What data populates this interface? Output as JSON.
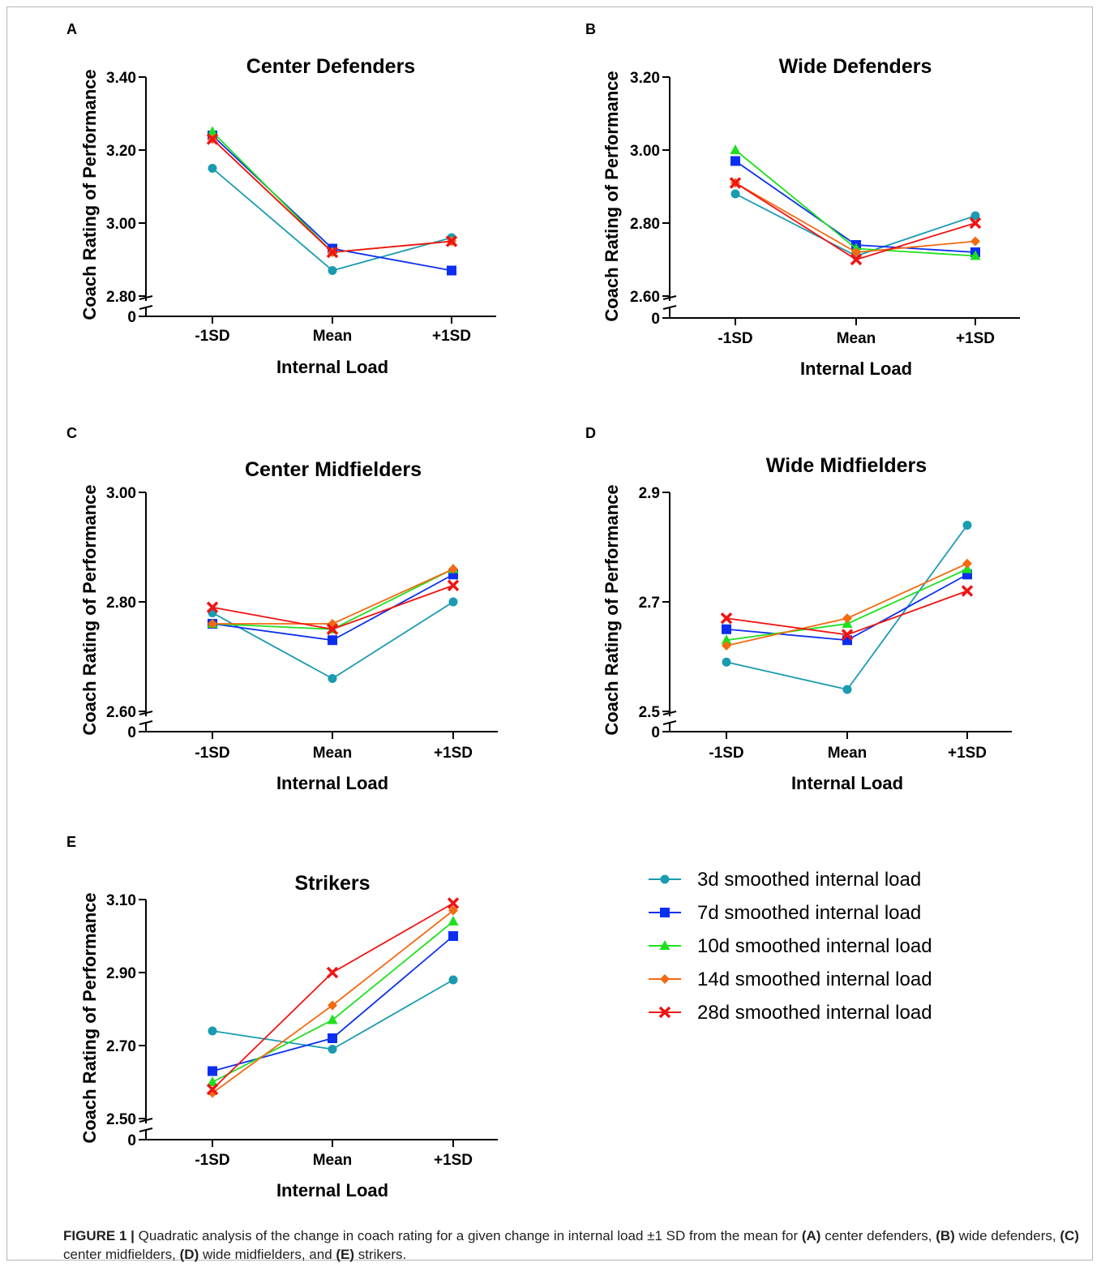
{
  "figure_caption": {
    "label": "FIGURE 1 |",
    "parts": [
      {
        "text": " Quadratic analysis of the change in coach rating for a given change in internal load ±1 SD from the mean for ",
        "bold": false
      },
      {
        "text": "(A)",
        "bold": true
      },
      {
        "text": " center defenders, ",
        "bold": false
      },
      {
        "text": "(B)",
        "bold": true
      },
      {
        "text": " wide defenders, ",
        "bold": false
      },
      {
        "text": "(C)",
        "bold": true
      },
      {
        "text": " center midfielders, ",
        "bold": false
      },
      {
        "text": "(D)",
        "bold": true
      },
      {
        "text": " wide midfielders, and ",
        "bold": false
      },
      {
        "text": "(E)",
        "bold": true
      },
      {
        "text": " strikers.",
        "bold": false
      }
    ]
  },
  "legend": {
    "entries": [
      {
        "label": "3d smoothed internal load",
        "color": "#1a9bb0",
        "marker": "circle"
      },
      {
        "label": "7d smoothed internal load",
        "color": "#0b2ff0",
        "marker": "square"
      },
      {
        "label": "10d smoothed internal load",
        "color": "#1ee01e",
        "marker": "triangle"
      },
      {
        "label": "14d smoothed internal load",
        "color": "#f26a12",
        "marker": "diamond"
      },
      {
        "label": "28d smoothed internal load",
        "color": "#f01414",
        "marker": "x"
      }
    ]
  },
  "chart_data": [
    {
      "type": "line",
      "panel_label": "A",
      "title": "Center Defenders",
      "xlabel": "Internal Load",
      "ylabel": "Coach Rating of Performance",
      "categories": [
        "-1SD",
        "Mean",
        "+1SD"
      ],
      "ylim": [
        2.8,
        3.4
      ],
      "yticks": [
        "3.40",
        "3.20",
        "3.00",
        "2.80"
      ],
      "y_break_zero": "0",
      "series": [
        {
          "name": "3d smoothed internal load",
          "values": [
            3.15,
            2.87,
            2.96
          ]
        },
        {
          "name": "7d smoothed internal load",
          "values": [
            3.24,
            2.93,
            2.87
          ]
        },
        {
          "name": "10d smoothed internal load",
          "values": [
            3.25,
            2.92,
            2.95
          ]
        },
        {
          "name": "14d smoothed internal load",
          "values": [
            3.23,
            2.92,
            2.95
          ]
        },
        {
          "name": "28d smoothed internal load",
          "values": [
            3.23,
            2.92,
            2.95
          ]
        }
      ]
    },
    {
      "type": "line",
      "panel_label": "B",
      "title": "Wide Defenders",
      "xlabel": "Internal Load",
      "ylabel": "Coach Rating of Performance",
      "categories": [
        "-1SD",
        "Mean",
        "+1SD"
      ],
      "ylim": [
        2.6,
        3.2
      ],
      "yticks": [
        "3.20",
        "3.00",
        "2.80",
        "2.60"
      ],
      "y_break_zero": "0",
      "series": [
        {
          "name": "3d smoothed internal load",
          "values": [
            2.88,
            2.71,
            2.82
          ]
        },
        {
          "name": "7d smoothed internal load",
          "values": [
            2.97,
            2.74,
            2.72
          ]
        },
        {
          "name": "10d smoothed internal load",
          "values": [
            3.0,
            2.73,
            2.71
          ]
        },
        {
          "name": "14d smoothed internal load",
          "values": [
            2.91,
            2.72,
            2.75
          ]
        },
        {
          "name": "28d smoothed internal load",
          "values": [
            2.91,
            2.7,
            2.8
          ]
        }
      ]
    },
    {
      "type": "line",
      "panel_label": "C",
      "title": "Center Midfielders",
      "xlabel": "Internal Load",
      "ylabel": "Coach Rating of Performance",
      "categories": [
        "-1SD",
        "Mean",
        "+1SD"
      ],
      "ylim": [
        2.6,
        3.0
      ],
      "yticks": [
        "3.00",
        "2.80",
        "2.60"
      ],
      "y_break_zero": "0",
      "series": [
        {
          "name": "3d smoothed internal load",
          "values": [
            2.78,
            2.66,
            2.8
          ]
        },
        {
          "name": "7d smoothed internal load",
          "values": [
            2.76,
            2.73,
            2.85
          ]
        },
        {
          "name": "10d smoothed internal load",
          "values": [
            2.76,
            2.75,
            2.86
          ]
        },
        {
          "name": "14d smoothed internal load",
          "values": [
            2.76,
            2.76,
            2.86
          ]
        },
        {
          "name": "28d smoothed internal load",
          "values": [
            2.79,
            2.75,
            2.83
          ]
        }
      ]
    },
    {
      "type": "line",
      "panel_label": "D",
      "title": "Wide Midfielders",
      "xlabel": "Internal Load",
      "ylabel": "Coach Rating of Performance",
      "categories": [
        "-1SD",
        "Mean",
        "+1SD"
      ],
      "ylim": [
        2.5,
        2.9
      ],
      "yticks": [
        "2.9",
        "2.7",
        "2.5"
      ],
      "y_break_zero": "0",
      "series": [
        {
          "name": "3d smoothed internal load",
          "values": [
            2.59,
            2.54,
            2.84
          ]
        },
        {
          "name": "7d smoothed internal load",
          "values": [
            2.65,
            2.63,
            2.75
          ]
        },
        {
          "name": "10d smoothed internal load",
          "values": [
            2.63,
            2.66,
            2.76
          ]
        },
        {
          "name": "14d smoothed internal load",
          "values": [
            2.62,
            2.67,
            2.77
          ]
        },
        {
          "name": "28d smoothed internal load",
          "values": [
            2.67,
            2.64,
            2.72
          ]
        }
      ]
    },
    {
      "type": "line",
      "panel_label": "E",
      "title": "Strikers",
      "xlabel": "Internal Load",
      "ylabel": "Coach Rating of Performance",
      "categories": [
        "-1SD",
        "Mean",
        "+1SD"
      ],
      "ylim": [
        2.5,
        3.1
      ],
      "yticks": [
        "3.10",
        "2.90",
        "2.70",
        "2.50"
      ],
      "y_break_zero": "0",
      "series": [
        {
          "name": "3d smoothed internal load",
          "values": [
            2.74,
            2.69,
            2.88
          ]
        },
        {
          "name": "7d smoothed internal load",
          "values": [
            2.63,
            2.72,
            3.0
          ]
        },
        {
          "name": "10d smoothed internal load",
          "values": [
            2.6,
            2.77,
            3.04
          ]
        },
        {
          "name": "14d smoothed internal load",
          "values": [
            2.57,
            2.81,
            3.07
          ]
        },
        {
          "name": "28d smoothed internal load",
          "values": [
            2.58,
            2.9,
            3.09
          ]
        }
      ]
    }
  ]
}
